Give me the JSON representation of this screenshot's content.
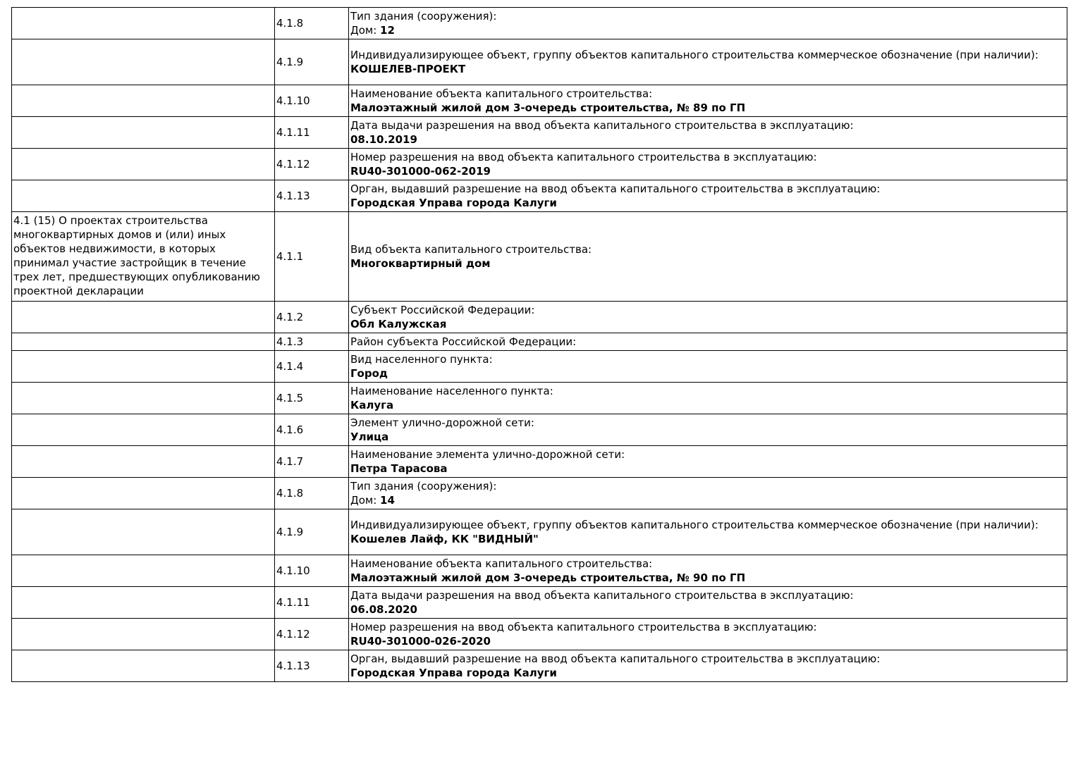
{
  "rows": [
    {
      "section": "",
      "code": "4.1.8",
      "label": "Тип здания (сооружения):",
      "value_prefix": "Дом: ",
      "value": "12"
    },
    {
      "section": "",
      "code": "4.1.9",
      "label": "Индивидуализирующее объект, группу объектов капитального строительства коммерческое обозначение (при наличии):",
      "value": "КОШЕЛЕВ-ПРОЕКТ"
    },
    {
      "section": "",
      "code": "4.1.10",
      "label": "Наименование объекта капитального строительства:",
      "value": "Малоэтажный жилой дом 3-очередь строительства, № 89 по ГП"
    },
    {
      "section": "",
      "code": "4.1.11",
      "label": "Дата выдачи разрешения на ввод объекта капитального строительства в эксплуатацию:",
      "value": "08.10.2019"
    },
    {
      "section": "",
      "code": "4.1.12",
      "label": "Номер разрешения на ввод объекта капитального строительства в эксплуатацию:",
      "value": "RU40-301000-062-2019"
    },
    {
      "section": "",
      "code": "4.1.13",
      "label": "Орган, выдавший разрешение на ввод объекта капитального строительства в эксплуатацию:",
      "value": "Городская Управа города Калуги"
    },
    {
      "section": "4.1 (15) О проектах строительства многоквартирных домов и (или) иных объектов недвижимости, в которых принимал участие застройщик в течение трех лет, предшествующих опубликованию проектной декларации",
      "code": "4.1.1",
      "label": "Вид объекта капитального строительства:",
      "value": "Многоквартирный дом"
    },
    {
      "section": "",
      "code": "4.1.2",
      "label": "Субъект Российской Федерации:",
      "value": "Обл Калужская"
    },
    {
      "section": "",
      "code": "4.1.3",
      "label": "Район субъекта Российской Федерации:",
      "value": ""
    },
    {
      "section": "",
      "code": "4.1.4",
      "label": "Вид населенного пункта:",
      "value": "Город"
    },
    {
      "section": "",
      "code": "4.1.5",
      "label": "Наименование населенного пункта:",
      "value": "Калуга"
    },
    {
      "section": "",
      "code": "4.1.6",
      "label": "Элемент улично-дорожной сети:",
      "value": "Улица"
    },
    {
      "section": "",
      "code": "4.1.7",
      "label": "Наименование элемента улично-дорожной сети:",
      "value": "Петра Тарасова"
    },
    {
      "section": "",
      "code": "4.1.8",
      "label": "Тип здания (сооружения):",
      "value_prefix": "Дом: ",
      "value": "14"
    },
    {
      "section": "",
      "code": "4.1.9",
      "label": "Индивидуализирующее объект, группу объектов капитального строительства коммерческое обозначение (при наличии):",
      "value": "Кошелев Лайф, КК \"ВИДНЫЙ\""
    },
    {
      "section": "",
      "code": "4.1.10",
      "label": "Наименование объекта капитального строительства:",
      "value": "Малоэтажный жилой дом 3-очередь строительства, № 90 по ГП"
    },
    {
      "section": "",
      "code": "4.1.11",
      "label": "Дата выдачи разрешения на ввод объекта капитального строительства в эксплуатацию:",
      "value": "06.08.2020"
    },
    {
      "section": "",
      "code": "4.1.12",
      "label": "Номер разрешения на ввод объекта капитального строительства в эксплуатацию:",
      "value": "RU40-301000-026-2020"
    },
    {
      "section": "",
      "code": "4.1.13",
      "label": "Орган, выдавший разрешение на ввод объекта капитального строительства в эксплуатацию:",
      "value": "Городская Управа города Калуги"
    }
  ]
}
